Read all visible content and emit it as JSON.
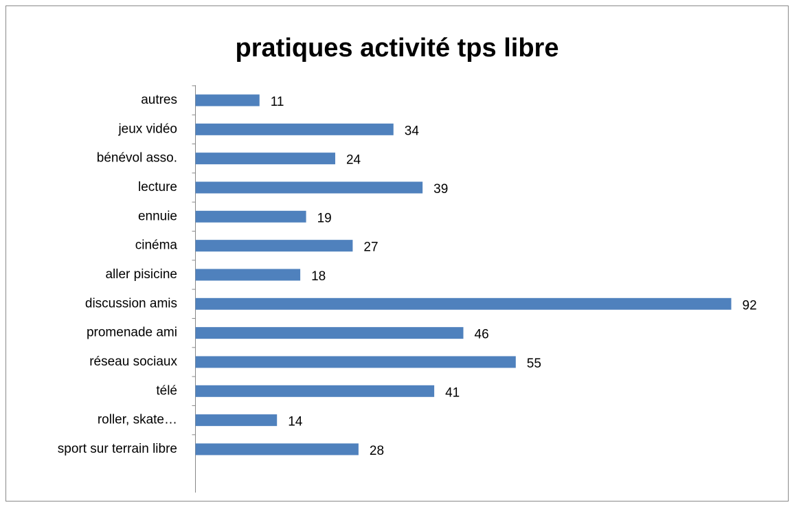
{
  "chart_data": {
    "type": "bar",
    "orientation": "horizontal",
    "title": "pratiques activité tps libre",
    "categories": [
      "autres",
      "jeux vidéo",
      "bénévol asso.",
      "lecture",
      "ennuie",
      "cinéma",
      "aller pisicine",
      "discussion amis",
      "promenade ami",
      "réseau sociaux",
      "télé",
      "roller, skate…",
      "sport sur terrain libre"
    ],
    "values": [
      11,
      34,
      24,
      39,
      19,
      27,
      18,
      92,
      46,
      55,
      41,
      14,
      28
    ],
    "color": "#4f81bd"
  }
}
